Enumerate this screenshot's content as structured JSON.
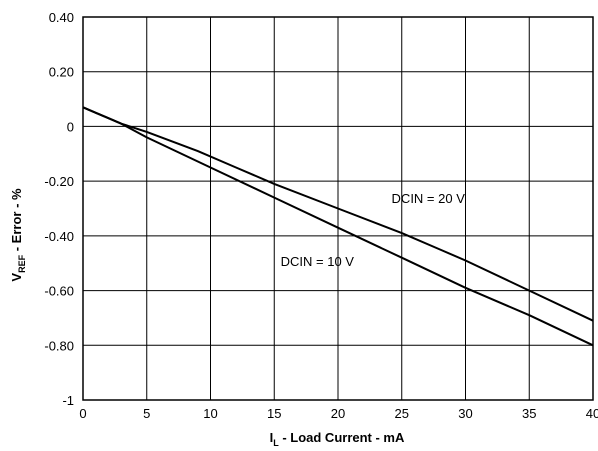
{
  "chart_data": {
    "type": "line",
    "title": "",
    "xlabel": {
      "main": "I",
      "sub": "L",
      "rest": " - Load Current - mA"
    },
    "ylabel": {
      "main": "V",
      "sub": "REF",
      "rest": " - Error - %"
    },
    "xlim": [
      0,
      40
    ],
    "ylim": [
      -1.0,
      0.4
    ],
    "grid": true,
    "x_ticks": [
      0,
      5,
      10,
      15,
      20,
      25,
      30,
      35,
      40
    ],
    "x_tick_labels": [
      "0",
      "5",
      "10",
      "15",
      "20",
      "25",
      "30",
      "35",
      "40"
    ],
    "y_ticks": [
      0.4,
      0.2,
      0.0,
      -0.2,
      -0.4,
      -0.6,
      -0.8,
      -1.0
    ],
    "y_tick_labels": [
      "0.40",
      "0.20",
      "0",
      "-0.20",
      "-0.40",
      "-0.60",
      "-0.80",
      "-1"
    ],
    "series": [
      {
        "name": "DCIN = 20 V",
        "x": [
          0,
          1,
          2,
          3,
          5,
          9,
          12,
          15,
          20,
          25,
          28,
          30,
          35,
          40
        ],
        "y": [
          0.07,
          0.05,
          0.03,
          0.01,
          -0.02,
          -0.09,
          -0.15,
          -0.21,
          -0.3,
          -0.39,
          -0.45,
          -0.49,
          -0.6,
          -0.71
        ]
      },
      {
        "name": "DCIN = 10 V",
        "x": [
          0,
          1,
          2,
          3,
          5,
          10,
          15,
          20,
          25,
          30,
          35,
          40
        ],
        "y": [
          0.07,
          0.05,
          0.03,
          0.01,
          -0.04,
          -0.15,
          -0.26,
          -0.37,
          -0.48,
          -0.59,
          -0.69,
          -0.8
        ]
      }
    ],
    "annotations": [
      {
        "text": "DCIN = 20 V",
        "x": 24.2,
        "y": -0.28
      },
      {
        "text": "DCIN = 10 V",
        "x": 15.5,
        "y": -0.51
      }
    ]
  }
}
